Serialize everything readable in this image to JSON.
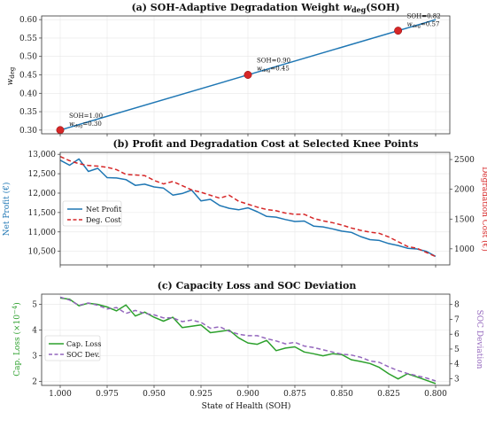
{
  "chart_data": [
    {
      "type": "line",
      "title": "(a) SOH-Adaptive Degradation Weight w_deg(SOH)",
      "title_parts": {
        "prefix": "(a) SOH-Adaptive Degradation Weight ",
        "w": "w",
        "sub": "deg",
        "suffix": "(SOH)"
      },
      "ylabel": {
        "w": "w",
        "sub": "deg"
      },
      "x_reversed": true,
      "xlim": [
        1.0,
        0.8
      ],
      "ylim": [
        0.29,
        0.61
      ],
      "yticks": [
        "0.30",
        "0.35",
        "0.40",
        "0.45",
        "0.50",
        "0.55",
        "0.60"
      ],
      "grid": true,
      "series": [
        {
          "color": "#1f77b4",
          "x": [
            1.0,
            0.8
          ],
          "y": [
            0.3,
            0.6
          ]
        }
      ],
      "markers": [
        {
          "x": 1.0,
          "y": 0.3,
          "label1": "SOH=1.00",
          "w": "w",
          "sub": "deg",
          "val": "=0.30",
          "color": "#d62728"
        },
        {
          "x": 0.9,
          "y": 0.45,
          "label1": "SOH=0.90",
          "w": "w",
          "sub": "deg",
          "val": "=0.45",
          "color": "#d62728"
        },
        {
          "x": 0.82,
          "y": 0.57,
          "label1": "SOH=0.82",
          "w": "w",
          "sub": "deg",
          "val": "=0.57",
          "color": "#d62728"
        }
      ]
    },
    {
      "type": "line",
      "title": "(b) Profit and Degradation Cost at Selected Knee Points",
      "ylabel": "Net Profit (€)",
      "y2label": "Degradation Cost (€)",
      "x_reversed": true,
      "xlim": [
        1.0,
        0.8
      ],
      "ylim": [
        10150,
        13050
      ],
      "y2lim": [
        730,
        2620
      ],
      "yticks": [
        "10,500",
        "11,000",
        "11,500",
        "12,000",
        "12,500",
        "13,000"
      ],
      "y2ticks": [
        "1000",
        "1500",
        "2000",
        "2500"
      ],
      "grid": true,
      "legend_position": "middle-left",
      "series": [
        {
          "name": "Net Profit",
          "axis": "left",
          "color": "#1f77b4",
          "dash": "solid",
          "x": [
            1.0,
            0.995,
            0.99,
            0.985,
            0.98,
            0.975,
            0.97,
            0.965,
            0.96,
            0.955,
            0.95,
            0.945,
            0.94,
            0.935,
            0.93,
            0.925,
            0.92,
            0.915,
            0.91,
            0.905,
            0.9,
            0.895,
            0.89,
            0.885,
            0.88,
            0.875,
            0.87,
            0.865,
            0.86,
            0.855,
            0.85,
            0.845,
            0.84,
            0.835,
            0.83,
            0.825,
            0.82,
            0.815,
            0.81,
            0.805,
            0.8
          ],
          "y": [
            12850,
            12720,
            12880,
            12560,
            12640,
            12400,
            12390,
            12350,
            12200,
            12230,
            12160,
            12130,
            11950,
            11990,
            12080,
            11800,
            11840,
            11680,
            11610,
            11570,
            11620,
            11520,
            11400,
            11380,
            11320,
            11270,
            11280,
            11150,
            11130,
            11080,
            11020,
            10990,
            10880,
            10800,
            10780,
            10700,
            10650,
            10580,
            10560,
            10500,
            10370
          ]
        },
        {
          "name": "Deg. Cost",
          "axis": "right",
          "color": "#d62728",
          "dash": "dashed",
          "x": [
            1.0,
            0.995,
            0.99,
            0.985,
            0.98,
            0.975,
            0.97,
            0.965,
            0.96,
            0.955,
            0.95,
            0.945,
            0.94,
            0.935,
            0.93,
            0.925,
            0.92,
            0.915,
            0.91,
            0.905,
            0.9,
            0.895,
            0.89,
            0.885,
            0.88,
            0.875,
            0.87,
            0.865,
            0.86,
            0.855,
            0.85,
            0.845,
            0.84,
            0.835,
            0.83,
            0.825,
            0.82,
            0.815,
            0.81,
            0.805,
            0.8
          ],
          "y": [
            2550,
            2480,
            2430,
            2400,
            2390,
            2370,
            2330,
            2250,
            2240,
            2230,
            2150,
            2090,
            2130,
            2060,
            1990,
            1950,
            1900,
            1850,
            1900,
            1800,
            1750,
            1700,
            1660,
            1640,
            1600,
            1580,
            1580,
            1510,
            1470,
            1440,
            1400,
            1350,
            1310,
            1280,
            1260,
            1200,
            1120,
            1040,
            1010,
            940,
            870
          ]
        }
      ]
    },
    {
      "type": "line",
      "title": "(c) Capacity Loss and SOC Deviation",
      "ylabel": {
        "text": "Cap. Loss (×10",
        "sup": "−4",
        "end": ")"
      },
      "y2label": "SOC Deviation",
      "xlabel": "State of Health (SOH)",
      "x_reversed": true,
      "xlim": [
        1.0,
        0.8
      ],
      "ylim": [
        1.85,
        5.4
      ],
      "y2lim": [
        2.55,
        8.7
      ],
      "yticks": [
        "2",
        "3",
        "4",
        "5"
      ],
      "y2ticks": [
        "3",
        "4",
        "5",
        "6",
        "7",
        "8"
      ],
      "xticks": [
        "1.000",
        "0.975",
        "0.950",
        "0.925",
        "0.900",
        "0.875",
        "0.850",
        "0.825",
        "0.800"
      ],
      "xtick_values": [
        1.0,
        0.975,
        0.95,
        0.925,
        0.9,
        0.875,
        0.85,
        0.825,
        0.8
      ],
      "grid": true,
      "legend_position": "middle-left",
      "series": [
        {
          "name": "Cap. Loss",
          "axis": "left",
          "color": "#2ca02c",
          "dash": "solid",
          "x": [
            1.0,
            0.995,
            0.99,
            0.985,
            0.98,
            0.975,
            0.97,
            0.965,
            0.96,
            0.955,
            0.95,
            0.945,
            0.94,
            0.935,
            0.93,
            0.925,
            0.92,
            0.915,
            0.91,
            0.905,
            0.9,
            0.895,
            0.89,
            0.885,
            0.88,
            0.875,
            0.87,
            0.865,
            0.86,
            0.855,
            0.85,
            0.845,
            0.84,
            0.835,
            0.83,
            0.825,
            0.82,
            0.815,
            0.81,
            0.805,
            0.8
          ],
          "y": [
            5.25,
            5.2,
            4.95,
            5.05,
            5.0,
            4.9,
            4.75,
            4.98,
            4.55,
            4.7,
            4.5,
            4.35,
            4.5,
            4.1,
            4.15,
            4.2,
            3.9,
            3.95,
            4.0,
            3.7,
            3.5,
            3.45,
            3.6,
            3.2,
            3.3,
            3.35,
            3.15,
            3.08,
            3.0,
            3.08,
            3.05,
            2.85,
            2.78,
            2.7,
            2.55,
            2.3,
            2.1,
            2.3,
            2.18,
            2.05,
            1.92
          ]
        },
        {
          "name": "SOC Dev.",
          "axis": "right",
          "color": "#9467bd",
          "dash": "dashed",
          "x": [
            1.0,
            0.995,
            0.99,
            0.985,
            0.98,
            0.975,
            0.97,
            0.965,
            0.96,
            0.955,
            0.95,
            0.945,
            0.94,
            0.935,
            0.93,
            0.925,
            0.92,
            0.915,
            0.91,
            0.905,
            0.9,
            0.895,
            0.89,
            0.885,
            0.88,
            0.875,
            0.87,
            0.865,
            0.86,
            0.855,
            0.85,
            0.845,
            0.84,
            0.835,
            0.83,
            0.825,
            0.82,
            0.815,
            0.81,
            0.805,
            0.8
          ],
          "y": [
            8.5,
            8.3,
            7.95,
            8.1,
            7.95,
            7.7,
            7.8,
            7.4,
            7.6,
            7.4,
            7.3,
            7.1,
            7.1,
            6.85,
            6.95,
            6.8,
            6.4,
            6.5,
            6.2,
            6.0,
            5.9,
            5.9,
            5.7,
            5.55,
            5.35,
            5.45,
            5.2,
            5.1,
            4.95,
            4.8,
            4.65,
            4.6,
            4.45,
            4.2,
            4.1,
            3.8,
            3.55,
            3.35,
            3.2,
            3.05,
            2.85
          ]
        }
      ]
    }
  ]
}
